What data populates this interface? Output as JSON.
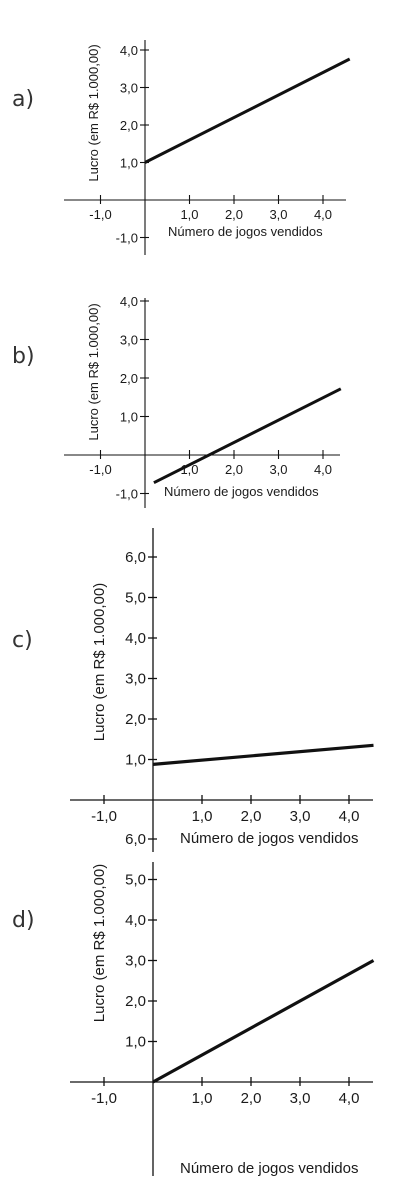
{
  "chart_data": [
    {
      "type": "line",
      "label": "a)",
      "xlabel": "Número de jogos vendidos",
      "ylabel": "Lucro (em R$ 1.000,00)",
      "xlim": [
        -1.5,
        4.6
      ],
      "ylim": [
        -1.5,
        4.5
      ],
      "x_ticks": [
        -1.0,
        1.0,
        2.0,
        3.0,
        4.0
      ],
      "x_tick_labels": [
        "-1,0",
        "1,0",
        "2,0",
        "3,0",
        "4,0"
      ],
      "y_ticks": [
        -1.0,
        1.0,
        2.0,
        3.0,
        4.0
      ],
      "y_tick_labels": [
        "-1,0",
        "1,0",
        "2,0",
        "3,0",
        "4,0"
      ],
      "grid": false,
      "series": [
        {
          "x": [
            0,
            4.6
          ],
          "y": [
            1.0,
            3.76
          ]
        }
      ]
    },
    {
      "type": "line",
      "label": "b)",
      "xlabel": "Número de jogos vendidos",
      "ylabel": "Lucro (em R$ 1.000,00)",
      "xlim": [
        -1.5,
        4.6
      ],
      "ylim": [
        -1.5,
        4.5
      ],
      "x_ticks": [
        -1.0,
        1.0,
        2.0,
        3.0,
        4.0
      ],
      "x_tick_labels": [
        "-1,0",
        "1,0",
        "2,0",
        "3,0",
        "4,0"
      ],
      "y_ticks": [
        -1.0,
        1.0,
        2.0,
        3.0,
        4.0
      ],
      "y_tick_labels": [
        "-1,0",
        "1,0",
        "2,0",
        "3,0",
        "4,0"
      ],
      "grid": false,
      "series": [
        {
          "x": [
            0.2,
            4.4
          ],
          "y": [
            -0.72,
            1.72
          ]
        }
      ]
    },
    {
      "type": "line",
      "label": "c)",
      "xlabel": "Número de jogos vendidos",
      "ylabel": "Lucro (em R$ 1.000,00)",
      "xlim": [
        -1.5,
        4.6
      ],
      "ylim": [
        -0.5,
        6.6
      ],
      "x_ticks": [
        -1.0,
        1.0,
        2.0,
        3.0,
        4.0
      ],
      "x_tick_labels": [
        "-1,0",
        "1,0",
        "2,0",
        "3,0",
        "4,0"
      ],
      "y_ticks": [
        1.0,
        2.0,
        3.0,
        4.0,
        5.0,
        6.0
      ],
      "y_tick_labels": [
        "1,0",
        "2,0",
        "3,0",
        "4,0",
        "5,0",
        "6,0"
      ],
      "grid": false,
      "series": [
        {
          "x": [
            0,
            4.5
          ],
          "y": [
            0.88,
            1.35
          ]
        }
      ]
    },
    {
      "type": "line",
      "label": "d)",
      "xlabel": "Número de jogos vendidos",
      "ylabel": "Lucro (em R$ 1.000,00)",
      "xlim": [
        -1.5,
        4.6
      ],
      "ylim": [
        -0.5,
        6.6
      ],
      "x_ticks": [
        -1.0,
        1.0,
        2.0,
        3.0,
        4.0
      ],
      "x_tick_labels": [
        "-1,0",
        "1,0",
        "2,0",
        "3,0",
        "4,0"
      ],
      "y_ticks": [
        1.0,
        2.0,
        3.0,
        4.0,
        5.0,
        6.0
      ],
      "y_tick_labels": [
        "1,0",
        "2,0",
        "3,0",
        "4,0",
        "5,0",
        "6,0"
      ],
      "grid": false,
      "series": [
        {
          "x": [
            0,
            4.5
          ],
          "y": [
            0.0,
            3.0
          ]
        }
      ]
    }
  ]
}
